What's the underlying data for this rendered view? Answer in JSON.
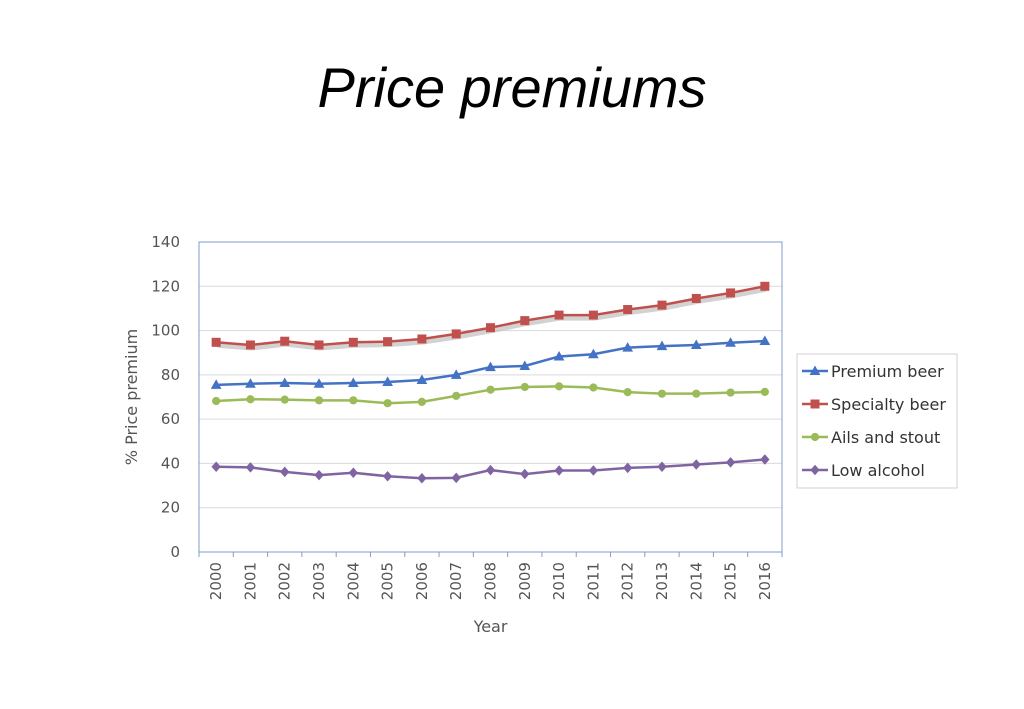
{
  "slide": {
    "title": "Price premiums"
  },
  "chart_data": {
    "type": "line",
    "title": "",
    "xlabel": "Year",
    "ylabel": "% Price premium",
    "ylim": [
      0,
      140
    ],
    "yticks": [
      0,
      20,
      40,
      60,
      80,
      100,
      120,
      140
    ],
    "grid": true,
    "legend": "right",
    "x": [
      "2000",
      "2001",
      "2002",
      "2003",
      "2004",
      "2005",
      "2006",
      "2007",
      "2008",
      "2009",
      "2010",
      "2011",
      "2012",
      "2013",
      "2014",
      "2015",
      "2016"
    ],
    "series": [
      {
        "name": "Premium beer",
        "color": "#4472C4",
        "marker": "triangle",
        "values": [
          75.5,
          76,
          76.3,
          76,
          76.3,
          76.8,
          77.7,
          80,
          83.5,
          84,
          88.3,
          89.3,
          92.3,
          93,
          93.5,
          94.5,
          95.3
        ]
      },
      {
        "name": "Specialty beer",
        "color": "#C0504D",
        "marker": "square",
        "values": [
          94.7,
          93.5,
          95.2,
          93.5,
          94.7,
          95,
          96.2,
          98.5,
          101.3,
          104.5,
          107,
          107,
          109.5,
          111.5,
          114.5,
          117,
          120
        ]
      },
      {
        "name": "Ails and stout",
        "color": "#9BBB59",
        "marker": "circle",
        "values": [
          68.2,
          69,
          68.8,
          68.5,
          68.5,
          67.2,
          67.8,
          70.5,
          73.3,
          74.5,
          74.8,
          74.3,
          72.2,
          71.5,
          71.5,
          72,
          72.3
        ]
      },
      {
        "name": "Low alcohol",
        "color": "#8064A2",
        "marker": "diamond",
        "values": [
          38.5,
          38.2,
          36.2,
          34.7,
          35.8,
          34.2,
          33.3,
          33.5,
          37,
          35.2,
          36.8,
          36.8,
          38,
          38.5,
          39.5,
          40.5,
          41.8
        ]
      }
    ]
  }
}
